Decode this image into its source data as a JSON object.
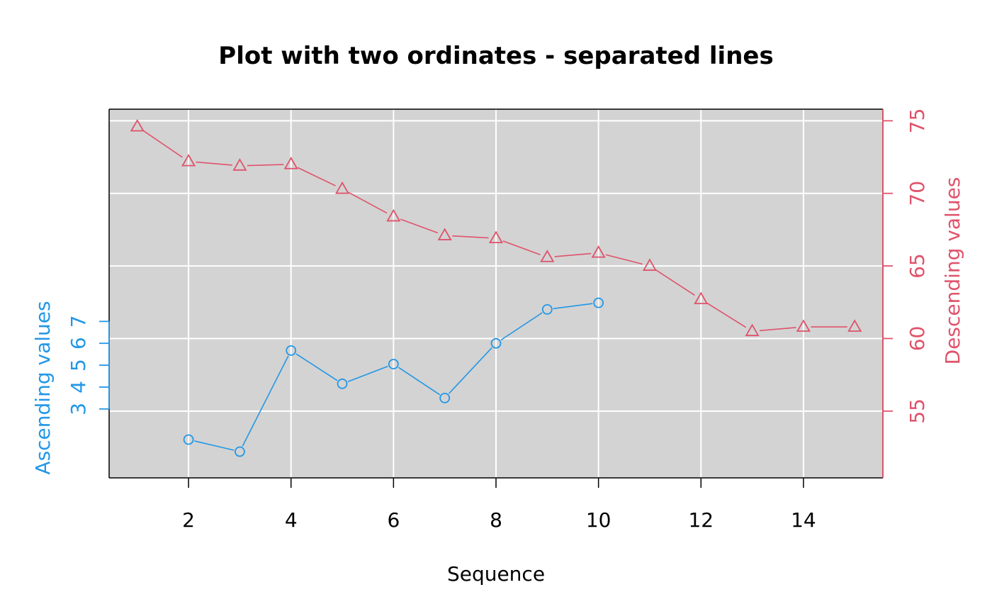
{
  "chart_data": {
    "type": "line",
    "title": "Plot with two ordinates - separated lines",
    "xlabel": "Sequence",
    "xlim": [
      0.45,
      15.55
    ],
    "x_ticks": [
      "2",
      "4",
      "6",
      "8",
      "10",
      "12",
      "14"
    ],
    "x_tick_values": [
      2,
      4,
      6,
      8,
      10,
      12,
      14
    ],
    "grid": true,
    "background": "#d3d3d3",
    "series": [
      {
        "name": "Ascending values",
        "axis": "left",
        "color": "#2297e6",
        "marker": "circle",
        "x": [
          2,
          3,
          4,
          5,
          6,
          7,
          8,
          9,
          10
        ],
        "values": [
          1.6,
          1.05,
          5.67,
          4.15,
          5.05,
          3.5,
          6.0,
          7.55,
          7.85
        ]
      },
      {
        "name": "Descending values",
        "axis": "right",
        "color": "#df536b",
        "marker": "triangle",
        "x": [
          1,
          2,
          3,
          4,
          5,
          6,
          7,
          8,
          9,
          10,
          11,
          12,
          13,
          14,
          15
        ],
        "values": [
          74.6,
          72.2,
          71.9,
          72.0,
          70.3,
          68.4,
          67.1,
          66.9,
          65.6,
          65.9,
          65.0,
          62.7,
          60.5,
          60.8,
          60.8
        ]
      }
    ],
    "left_axis": {
      "label": "Ascending values",
      "color": "#2297e6",
      "ylim": [
        -0.15,
        16.7
      ],
      "ticks": [
        "3",
        "4",
        "5",
        "6",
        "7"
      ],
      "tick_values": [
        3,
        4,
        5,
        6,
        7
      ]
    },
    "right_axis": {
      "label": "Descending values",
      "color": "#df536b",
      "ylim": [
        50.4,
        75.8
      ],
      "ticks": [
        "55",
        "60",
        "65",
        "70",
        "75"
      ],
      "tick_values": [
        55,
        60,
        65,
        70,
        75
      ]
    }
  }
}
